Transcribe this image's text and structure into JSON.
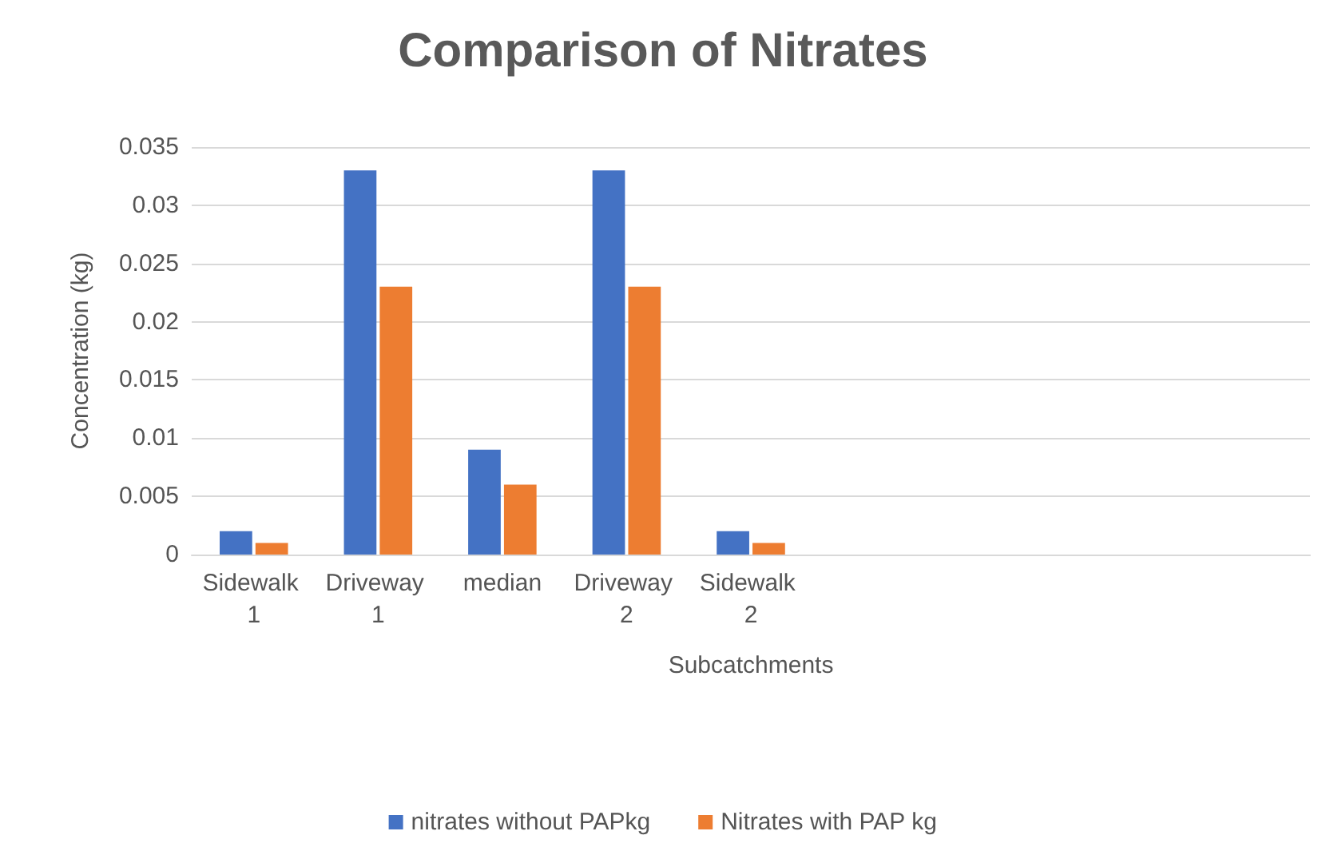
{
  "chart_data": {
    "type": "bar",
    "title": "Comparison of Nitrates",
    "xlabel": "Subcatchments",
    "ylabel": "Concentration (kg)",
    "categories": [
      "Sidewalk 1",
      "Driveway 1",
      "median",
      "Driveway 2",
      "Sidewalk 2",
      null,
      null,
      null,
      null
    ],
    "series": [
      {
        "name": "nitrates without PAPkg",
        "color": "#4472c4",
        "values": [
          0.002,
          0.033,
          0.009,
          0.033,
          0.002,
          null,
          null,
          null,
          null
        ]
      },
      {
        "name": "Nitrates with PAP kg",
        "color": "#ed7d31",
        "values": [
          0.001,
          0.023,
          0.006,
          0.023,
          0.001,
          null,
          null,
          null,
          null
        ]
      }
    ],
    "ylim": [
      0,
      0.035
    ],
    "yticks": [
      0,
      0.005,
      0.01,
      0.015,
      0.02,
      0.025,
      0.03,
      0.035
    ],
    "grid": "y",
    "legend": "bottom"
  }
}
